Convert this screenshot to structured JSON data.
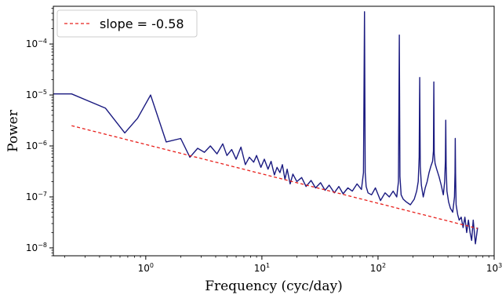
{
  "chart_data": {
    "type": "line",
    "xlabel": "Frequency (cyc/day)",
    "ylabel": "Power",
    "xscale": "log",
    "yscale": "log",
    "xlim": [
      0.16,
      1000
    ],
    "ylim": [
      7e-09,
      0.00055
    ],
    "grid": false,
    "legend_position": "top-left",
    "x_ticks": [
      {
        "value": 1,
        "mantissa": "10",
        "exp": "0"
      },
      {
        "value": 10,
        "mantissa": "10",
        "exp": "1"
      },
      {
        "value": 100,
        "mantissa": "10",
        "exp": "2"
      },
      {
        "value": 1000,
        "mantissa": "10",
        "exp": "3"
      }
    ],
    "y_ticks": [
      {
        "value": 1e-08,
        "mantissa": "10",
        "exp": "−8"
      },
      {
        "value": 1e-07,
        "mantissa": "10",
        "exp": "−7"
      },
      {
        "value": 1e-06,
        "mantissa": "10",
        "exp": "−6"
      },
      {
        "value": 1e-05,
        "mantissa": "10",
        "exp": "−5"
      },
      {
        "value": 0.0001,
        "mantissa": "10",
        "exp": "−4"
      }
    ],
    "series": [
      {
        "color": "#1a1a80",
        "style": "solid",
        "x": [
          0.16,
          0.23,
          0.45,
          0.66,
          0.85,
          1.1,
          1.5,
          2.0,
          2.4,
          2.8,
          3.2,
          3.6,
          4.1,
          4.6,
          5.0,
          5.5,
          6.0,
          6.6,
          7.2,
          7.8,
          8.5,
          9.0,
          9.8,
          10.5,
          11.3,
          12.0,
          12.8,
          13.5,
          14.3,
          15.0,
          15.8,
          16.5,
          17.5,
          18.5,
          20.0,
          22.0,
          24.0,
          26.5,
          29.0,
          32.0,
          35.0,
          38.0,
          42.0,
          46.0,
          50.0,
          55.0,
          60.0,
          66.0,
          72.0,
          75.0,
          76.5,
          77.5,
          79.0,
          82.0,
          88.0,
          95.0,
          105.0,
          115.0,
          125.0,
          135.0,
          145.0,
          150.0,
          152.5,
          154.5,
          158.0,
          165.0,
          175.0,
          190.0,
          205.0,
          215.0,
          222.0,
          226.0,
          228.5,
          231.0,
          236.0,
          245.0,
          255.0,
          265.0,
          275.0,
          285.0,
          295.0,
          300.0,
          302.5,
          305.0,
          310.0,
          320.0,
          335.0,
          350.0,
          365.0,
          375.0,
          380.0,
          383.0,
          386.0,
          392.0,
          405.0,
          420.0,
          440.0,
          455.0,
          460.0,
          462.5,
          465.0,
          470.0,
          485.0,
          500.0,
          520.0,
          540.0,
          560.0,
          580.0,
          600.0,
          620.0,
          640.0,
          660.0,
          690.0,
          720.0
        ],
        "y": [
          1.05e-05,
          1.05e-05,
          5.5e-06,
          1.8e-06,
          3.5e-06,
          1e-05,
          1.2e-06,
          1.4e-06,
          6e-07,
          9e-07,
          7.5e-07,
          1e-06,
          7e-07,
          1.1e-06,
          6.5e-07,
          8.5e-07,
          5.5e-07,
          9.5e-07,
          4.3e-07,
          6e-07,
          4.8e-07,
          6.5e-07,
          3.8e-07,
          5.5e-07,
          3.5e-07,
          5e-07,
          2.7e-07,
          3.8e-07,
          3e-07,
          4.3e-07,
          2.2e-07,
          3.5e-07,
          1.8e-07,
          2.8e-07,
          2e-07,
          2.4e-07,
          1.6e-07,
          2.1e-07,
          1.5e-07,
          1.9e-07,
          1.35e-07,
          1.7e-07,
          1.2e-07,
          1.6e-07,
          1.15e-07,
          1.5e-07,
          1.3e-07,
          1.8e-07,
          1.4e-07,
          3e-07,
          0.00043,
          3e-07,
          1.6e-07,
          1.2e-07,
          1.1e-07,
          1.5e-07,
          8.5e-08,
          1.2e-07,
          1e-07,
          1.3e-07,
          1e-07,
          2e-07,
          0.00015,
          2.5e-07,
          1.1e-07,
          9e-08,
          8e-08,
          7e-08,
          9e-08,
          1.3e-07,
          2e-07,
          6e-07,
          2.2e-05,
          4e-07,
          1.7e-07,
          1e-07,
          1.5e-07,
          2e-07,
          3e-07,
          4e-07,
          5e-07,
          8e-07,
          1.8e-05,
          7e-07,
          4.5e-07,
          3.5e-07,
          2.5e-07,
          1.7e-07,
          1.1e-07,
          2e-07,
          5e-07,
          3.2e-06,
          4e-07,
          1.3e-07,
          8e-08,
          6e-08,
          5e-08,
          1e-07,
          3e-07,
          1.4e-06,
          3e-07,
          7e-08,
          4.5e-08,
          3.5e-08,
          4e-08,
          2.5e-08,
          4e-08,
          2e-08,
          3.5e-08,
          2e-08,
          1.4e-08,
          3.5e-08,
          1.2e-08,
          2.5e-08
        ]
      },
      {
        "name": "slope = -0.58",
        "color": "#e8201c",
        "style": "dashed",
        "x": [
          0.23,
          720
        ],
        "y": [
          2.5e-06,
          2.4e-08
        ]
      }
    ]
  }
}
